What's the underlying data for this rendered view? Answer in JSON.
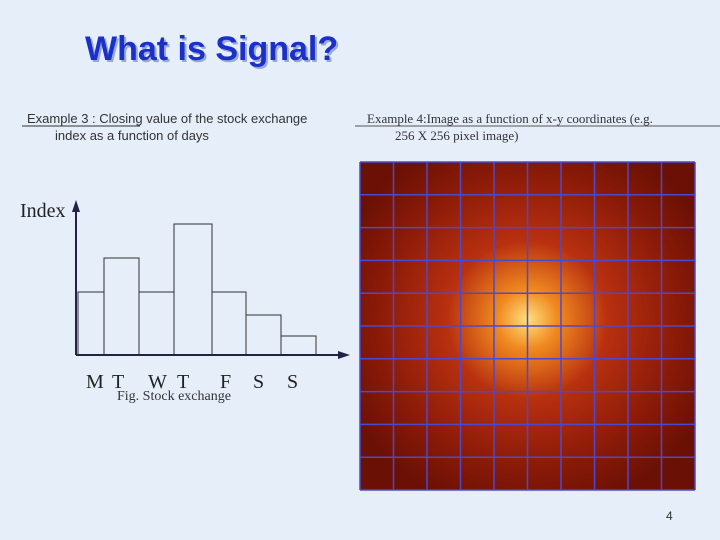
{
  "title": "What is Signal?",
  "left": {
    "heading_line1": "Example 3 : Closing value of the stock exchange",
    "heading_line2": "index  as a function of days",
    "figure": {
      "y_label": "Index",
      "categories": [
        "M",
        "T",
        "W",
        "T",
        "F",
        "S",
        "S"
      ],
      "caption": "Fig. Stock exchange"
    }
  },
  "right": {
    "heading_line1": "Example 4:Image as a function of x-y coordinates  (e.g.",
    "heading_line2": "256  X  256 pixel image)"
  },
  "page_number": "4"
}
